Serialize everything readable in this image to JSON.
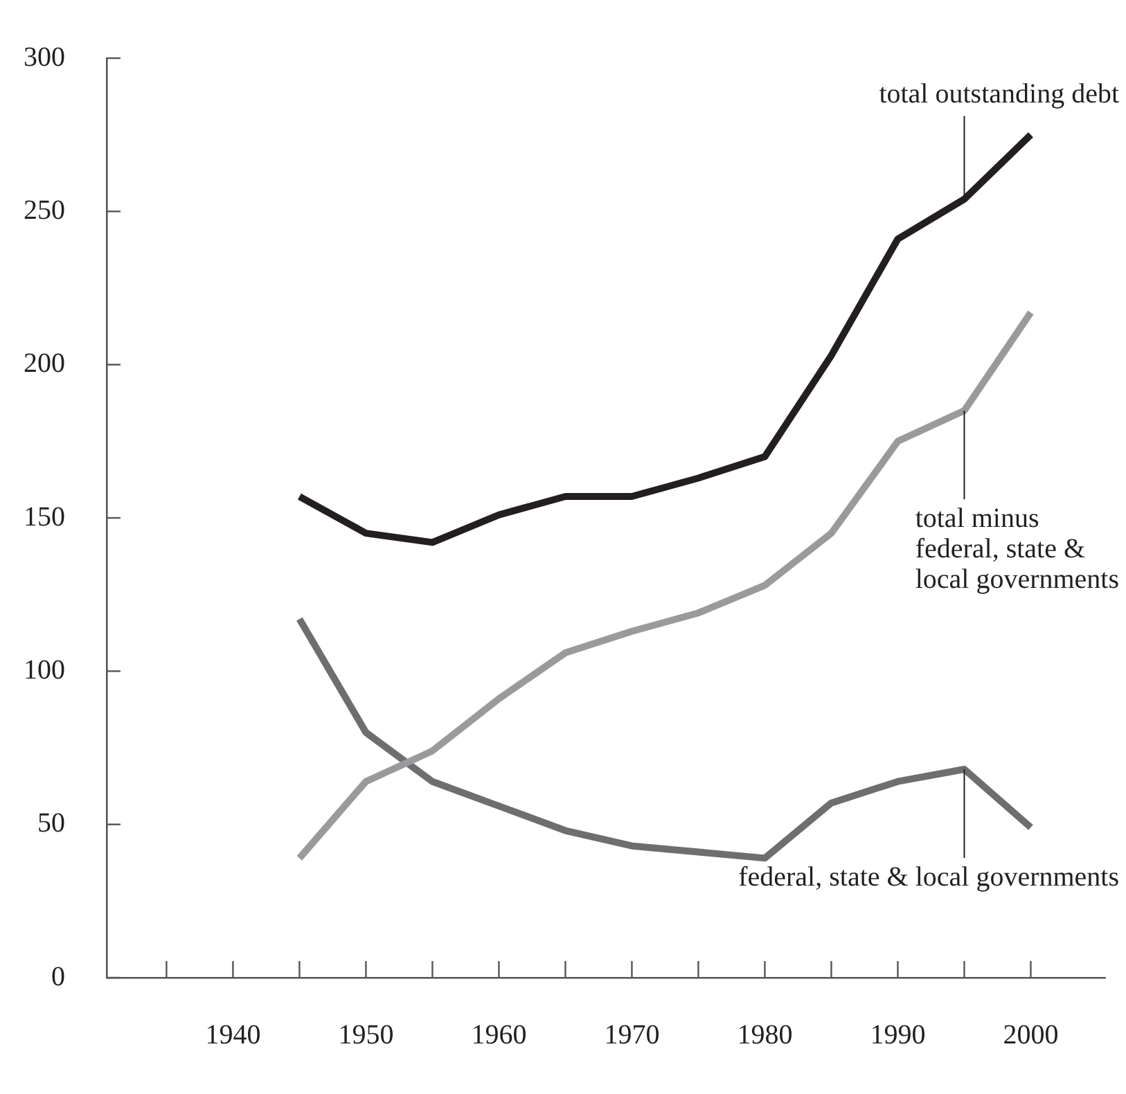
{
  "chart_data": {
    "type": "line",
    "x": [
      1945,
      1950,
      1955,
      1960,
      1965,
      1970,
      1975,
      1980,
      1985,
      1990,
      1995,
      2000
    ],
    "series": [
      {
        "name": "total outstanding debt",
        "color": "#231f20",
        "values": [
          157,
          145,
          142,
          151,
          157,
          157,
          163,
          170,
          203,
          241,
          254,
          275
        ]
      },
      {
        "name": "total minus\nfederal, state &\nlocal governments",
        "color": "#999a9c",
        "values": [
          39,
          64,
          74,
          91,
          106,
          113,
          119,
          128,
          145,
          175,
          185,
          217
        ]
      },
      {
        "name": "federal, state & local governments",
        "color": "#6d6e70",
        "values": [
          117,
          80,
          64,
          56,
          48,
          43,
          41,
          39,
          57,
          64,
          68,
          49
        ]
      }
    ],
    "xlim": [
      1930.5,
      2005.6
    ],
    "xticks": [
      {
        "value": 1935,
        "label": null
      },
      1940,
      {
        "value": 1945,
        "label": null
      },
      1950,
      {
        "value": 1955,
        "label": null
      },
      1960,
      {
        "value": 1965,
        "label": null
      },
      1970,
      {
        "value": 1975,
        "label": null
      },
      1980,
      {
        "value": 1985,
        "label": null
      },
      1990,
      {
        "value": 1995,
        "label": null
      },
      2000
    ],
    "ylim": [
      0,
      300
    ],
    "yticks": [
      0,
      50,
      100,
      150,
      200,
      250,
      300
    ],
    "grid": false,
    "legend": false,
    "marker": "none",
    "line_style": "solid"
  }
}
